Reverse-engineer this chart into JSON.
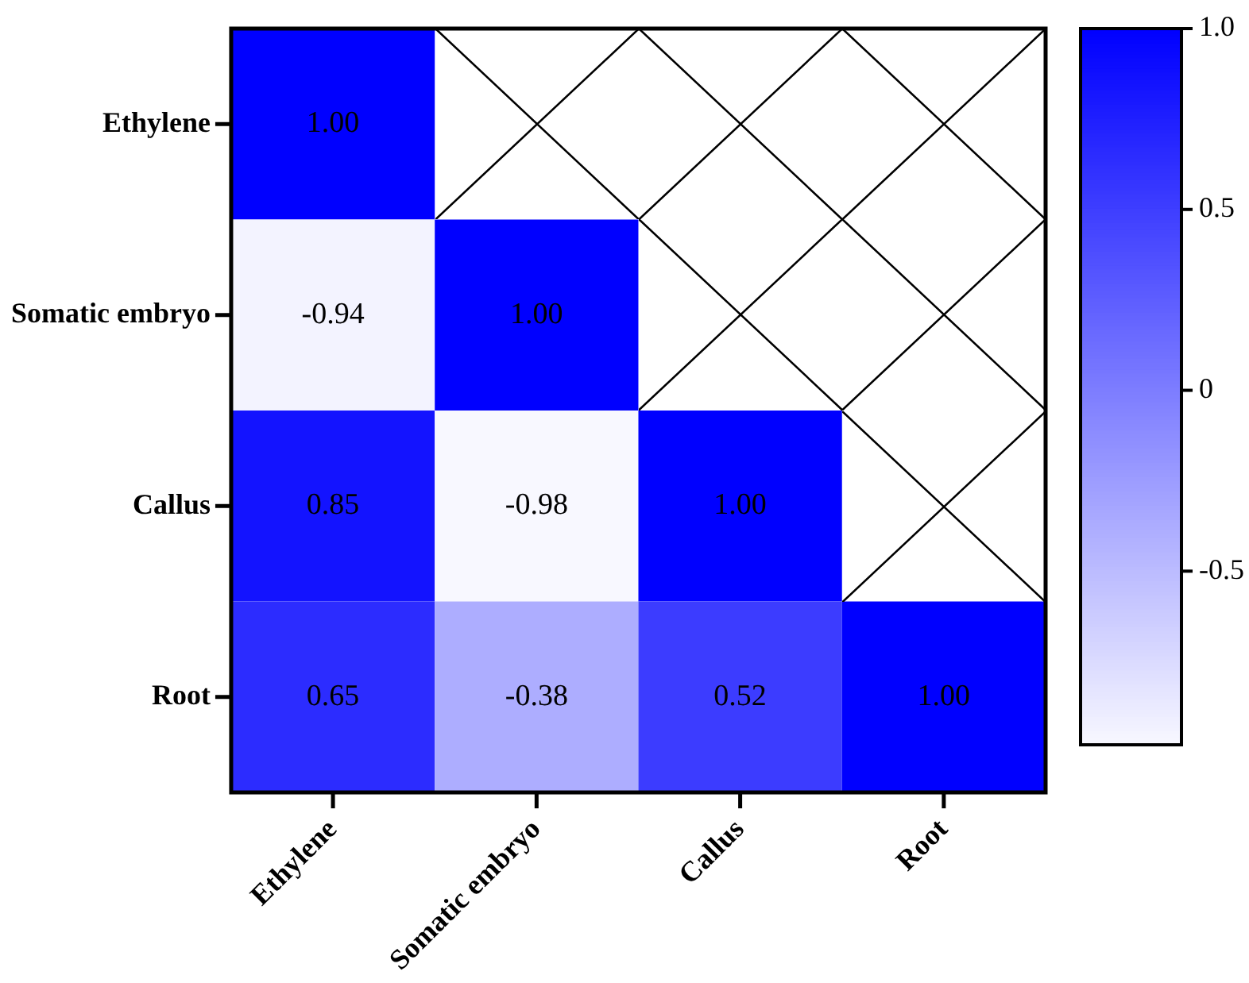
{
  "chart_data": {
    "type": "heatmap",
    "categories": [
      "Ethylene",
      "Somatic embryo",
      "Callus",
      "Root"
    ],
    "y_categories": [
      "Ethylene",
      "Somatic embryo",
      "Callus",
      "Root"
    ],
    "cells": [
      [
        1.0,
        null,
        null,
        null
      ],
      [
        -0.94,
        1.0,
        null,
        null
      ],
      [
        0.85,
        -0.98,
        1.0,
        null
      ],
      [
        0.65,
        -0.38,
        0.52,
        1.0
      ]
    ],
    "cell_labels": [
      [
        "1.00",
        null,
        null,
        null
      ],
      [
        "-0.94",
        "1.00",
        null,
        null
      ],
      [
        "0.85",
        "-0.98",
        "1.00",
        null
      ],
      [
        "0.65",
        "-0.38",
        "0.52",
        "1.00"
      ]
    ],
    "clim": [
      -0.98,
      1.0
    ],
    "cticks": [
      {
        "value": 1.0,
        "label": "1.0"
      },
      0.5,
      0,
      -0.5
    ]
  }
}
